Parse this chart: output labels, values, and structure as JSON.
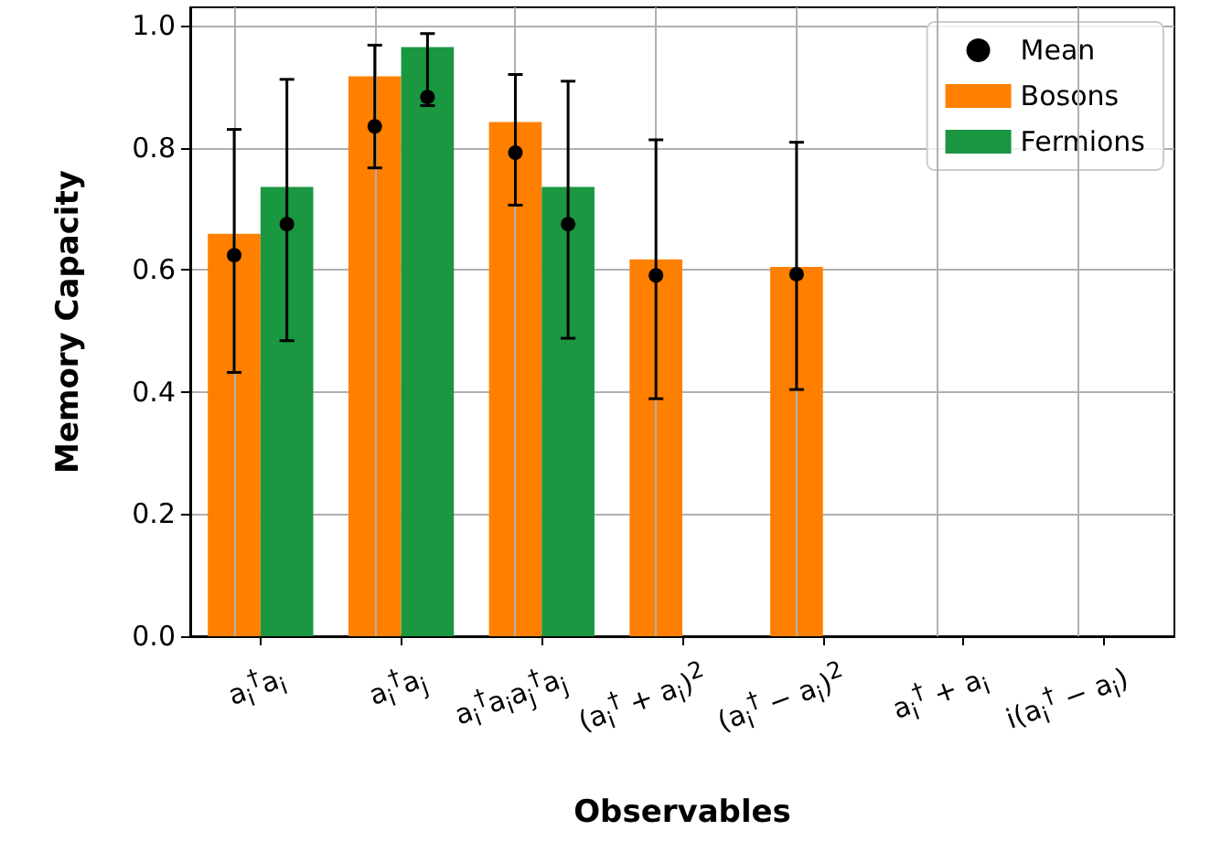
{
  "chart_data": {
    "type": "bar",
    "xlabel": "Observables",
    "ylabel": "Memory Capacity",
    "categories": [
      "a$_{i}$$^{†}$a$_{i}$",
      "a$_{i}$$^{†}$a$_{j}$",
      "a$_{i}$$^{†}$a$_{i}$a$_{j}$$^{†}$a$_{j}$",
      "(a$_{i}$$^{†}$ + a$_{i}$)$^{2}$",
      "(a$_{i}$$^{†}$ − a$_{i}$)$^{2}$",
      "a$_{i}$$^{†}$ + a$_{i}$",
      "i(a$_{i}$$^{†}$ − a$_{i}$)"
    ],
    "series": [
      {
        "name": "Bosons",
        "color": "#ff7f00",
        "values": [
          0.659,
          0.917,
          0.842,
          0.617,
          0.605,
          0,
          0
        ]
      },
      {
        "name": "Fermions",
        "color": "#1b9641",
        "values": [
          0.736,
          0.965,
          0.736,
          0,
          0,
          0,
          0
        ]
      },
      {
        "type": "scatter",
        "name": "Mean",
        "color": "#000000",
        "x": [
          "a$_{i}$$^{†}$a$_{i}$",
          "a$_{i}$$^{†}$a$_{j}$",
          "a$_{i}$$^{†}$a$_{i}$a$_{j}$$^{†}$a$_{j}$",
          "(a$_{i}$$^{†}$ + a$_{i}$)$^{2}$",
          "(a$_{i}$$^{†}$ − a$_{i}$)$^{2}$"
        ],
        "values": [
          0.624,
          0.835,
          0.792,
          0.591,
          0.593
        ],
        "errors": [
          [
            0.432,
            0.83
          ],
          [
            0.767,
            0.968
          ],
          [
            0.706,
            0.92
          ],
          [
            0.389,
            0.813
          ],
          [
            0.404,
            0.809
          ]
        ]
      },
      {
        "type": "scatter",
        "color": "#000000",
        "x": [
          "a$_{i}$$^{†}$a$_{i}$",
          "a$_{i}$$^{†}$a$_{j}$",
          "a$_{i}$$^{†}$a$_{i}$a$_{j}$$^{†}$a$_{j}$"
        ],
        "values": [
          0.675,
          0.883,
          0.675
        ],
        "errors": [
          [
            0.484,
            0.912
          ],
          [
            0.869,
            0.987
          ],
          [
            0.488,
            0.909
          ]
        ]
      }
    ],
    "ylim": [
      0,
      1.03
    ],
    "yticks": [
      {
        "value": 0,
        "label": "0.0"
      },
      {
        "value": 0.2,
        "label": "0.2"
      },
      {
        "value": 0.4,
        "label": "0.4"
      },
      {
        "value": 0.6,
        "label": "0.6"
      },
      {
        "value": 0.8,
        "label": "0.8"
      },
      {
        "value": 1,
        "label": "1.0"
      }
    ],
    "grid": true,
    "legend": "top right",
    "marker": "circle"
  }
}
